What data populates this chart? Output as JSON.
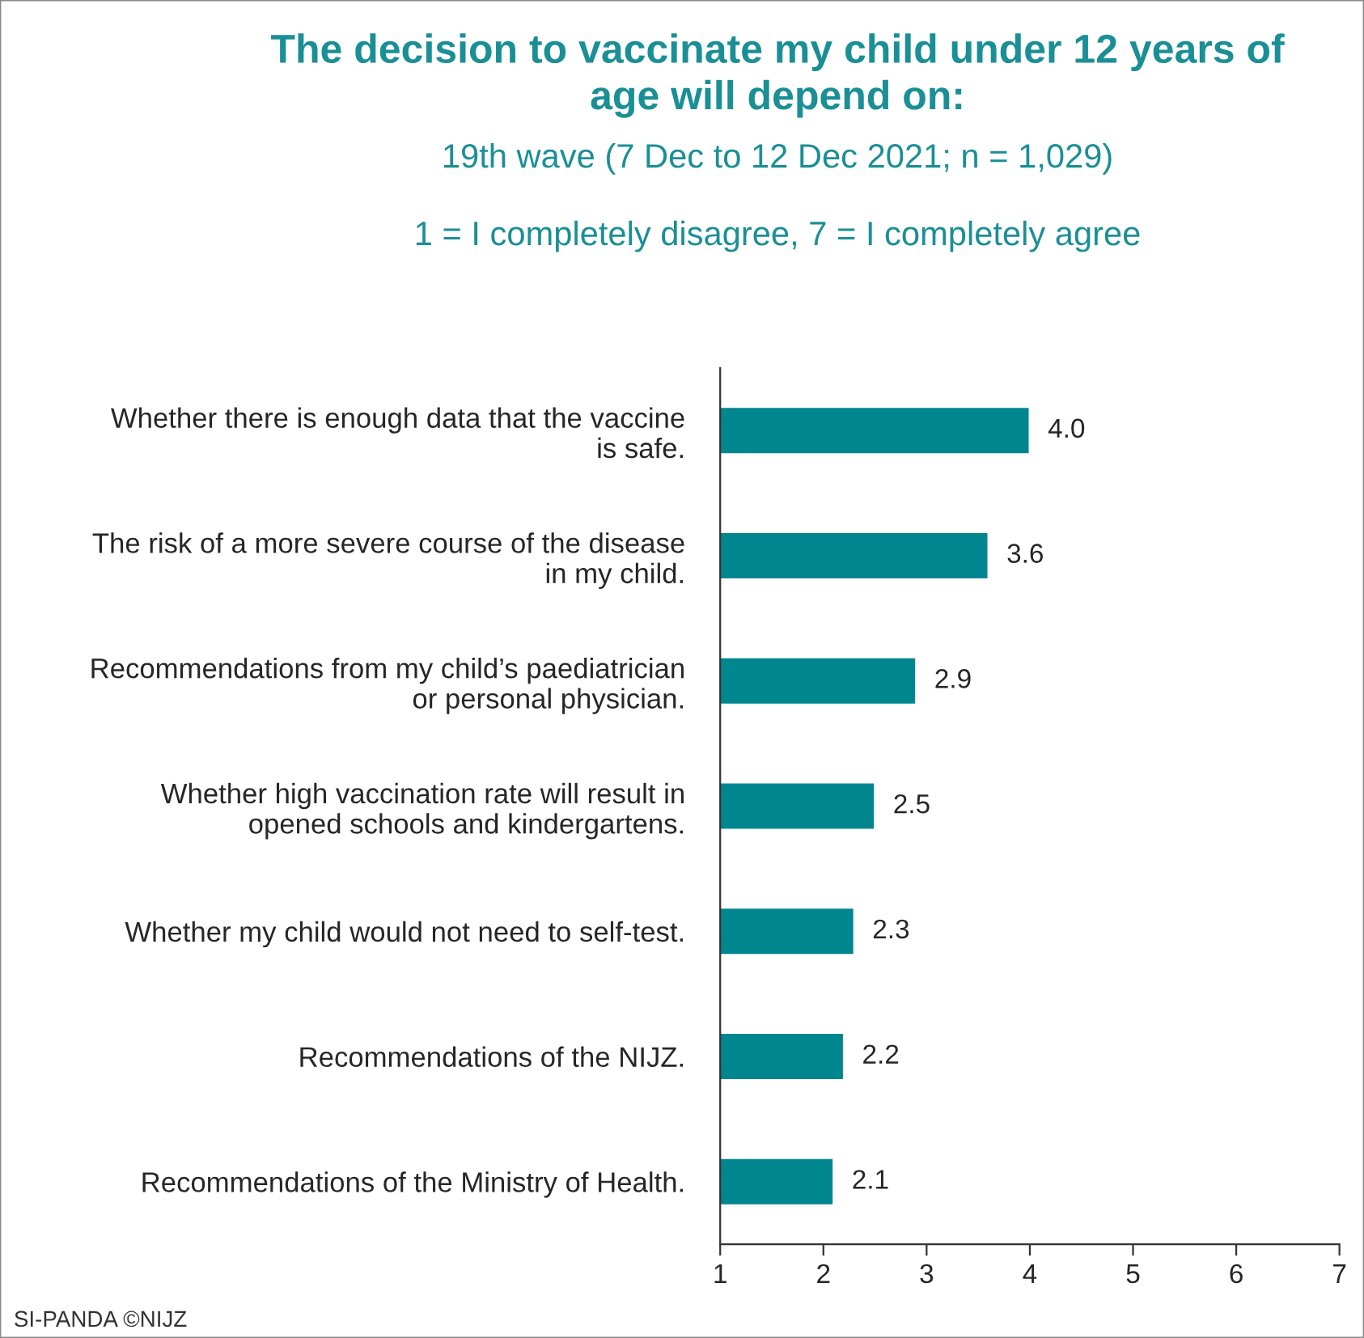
{
  "chart_data": {
    "type": "bar",
    "orientation": "horizontal",
    "title": "The decision to vaccinate my child under 12 years of\nage will depend on:",
    "subtitle": "19th wave (7 Dec to 12 Dec 2021; n = 1,029)\n\n1 = I completely disagree, 7 = I completely agree",
    "categories": [
      "Whether there is enough data that the vaccine\nis safe.",
      "The risk of a more severe course of the disease\nin my child.",
      "Recommendations from my child’s paediatrician\nor personal physician.",
      "Whether high vaccination rate will result in\nopened schools and kindergartens.",
      "Whether my child would not need to self-test.",
      "Recommendations of the NIJZ.",
      "Recommendations of the Ministry of Health."
    ],
    "values": [
      4.0,
      3.6,
      2.9,
      2.5,
      2.3,
      2.2,
      2.1
    ],
    "value_labels": [
      "4.0",
      "3.6",
      "2.9",
      "2.5",
      "2.3",
      "2.2",
      "2.1"
    ],
    "color": "#00868f",
    "xlim": [
      1,
      7
    ],
    "xticks": [
      1,
      2,
      3,
      4,
      5,
      6,
      7
    ],
    "grid": false,
    "legend": false,
    "annotations": [
      "SI-PANDA ©NIJZ"
    ]
  }
}
